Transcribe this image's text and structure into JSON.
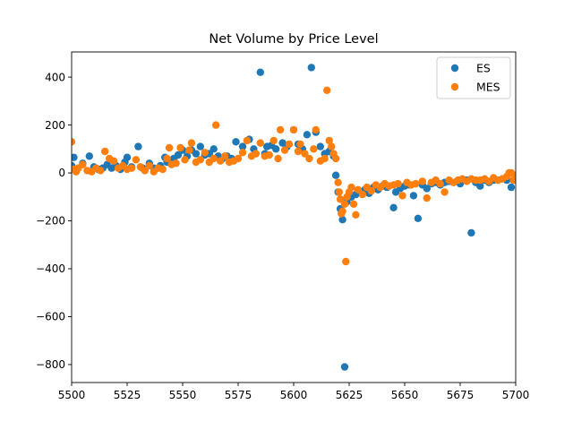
{
  "chart_data": {
    "type": "scatter",
    "title": "Net Volume by Price Level",
    "xlabel": "",
    "ylabel": "",
    "xlim": [
      5500,
      5700
    ],
    "ylim": [
      -875,
      505
    ],
    "xticks": [
      5500,
      5525,
      5550,
      5575,
      5600,
      5625,
      5650,
      5675,
      5700
    ],
    "yticks": [
      -800,
      -600,
      -400,
      -200,
      0,
      200,
      400
    ],
    "yticks_labels": [
      "−800",
      "−600",
      "−400",
      "−200",
      "0",
      "200",
      "400"
    ],
    "grid": false,
    "legend_position": "top-right",
    "series": [
      {
        "name": "ES",
        "color": "#1f77b4",
        "points": [
          [
            5500,
            30
          ],
          [
            5501,
            65
          ],
          [
            5503,
            20
          ],
          [
            5505,
            40
          ],
          [
            5508,
            70
          ],
          [
            5510,
            25
          ],
          [
            5512,
            15
          ],
          [
            5514,
            20
          ],
          [
            5516,
            35
          ],
          [
            5518,
            20
          ],
          [
            5520,
            30
          ],
          [
            5522,
            15
          ],
          [
            5524,
            45
          ],
          [
            5525,
            65
          ],
          [
            5527,
            25
          ],
          [
            5530,
            110
          ],
          [
            5532,
            20
          ],
          [
            5535,
            40
          ],
          [
            5537,
            20
          ],
          [
            5540,
            30
          ],
          [
            5542,
            65
          ],
          [
            5543,
            45
          ],
          [
            5546,
            60
          ],
          [
            5548,
            75
          ],
          [
            5550,
            95
          ],
          [
            5552,
            70
          ],
          [
            5554,
            95
          ],
          [
            5556,
            80
          ],
          [
            5558,
            110
          ],
          [
            5560,
            75
          ],
          [
            5562,
            80
          ],
          [
            5564,
            100
          ],
          [
            5566,
            70
          ],
          [
            5568,
            60
          ],
          [
            5570,
            70
          ],
          [
            5572,
            60
          ],
          [
            5574,
            130
          ],
          [
            5577,
            110
          ],
          [
            5580,
            140
          ],
          [
            5582,
            100
          ],
          [
            5585,
            420
          ],
          [
            5587,
            80
          ],
          [
            5588,
            110
          ],
          [
            5590,
            115
          ],
          [
            5592,
            100
          ],
          [
            5595,
            125
          ],
          [
            5597,
            110
          ],
          [
            5600,
            180
          ],
          [
            5602,
            120
          ],
          [
            5604,
            100
          ],
          [
            5606,
            160
          ],
          [
            5608,
            440
          ],
          [
            5610,
            170
          ],
          [
            5612,
            110
          ],
          [
            5614,
            80
          ],
          [
            5616,
            90
          ],
          [
            5618,
            70
          ],
          [
            5619,
            -10
          ],
          [
            5620,
            -80
          ],
          [
            5621,
            -150
          ],
          [
            5622,
            -195
          ],
          [
            5623,
            -810
          ],
          [
            5624,
            -120
          ],
          [
            5626,
            -100
          ],
          [
            5628,
            -90
          ],
          [
            5630,
            -80
          ],
          [
            5632,
            -70
          ],
          [
            5634,
            -85
          ],
          [
            5636,
            -60
          ],
          [
            5638,
            -70
          ],
          [
            5640,
            -55
          ],
          [
            5642,
            -60
          ],
          [
            5645,
            -145
          ],
          [
            5646,
            -80
          ],
          [
            5648,
            -65
          ],
          [
            5650,
            -55
          ],
          [
            5652,
            -50
          ],
          [
            5654,
            -95
          ],
          [
            5656,
            -190
          ],
          [
            5658,
            -50
          ],
          [
            5660,
            -65
          ],
          [
            5662,
            -45
          ],
          [
            5664,
            -40
          ],
          [
            5666,
            -50
          ],
          [
            5668,
            -40
          ],
          [
            5670,
            -35
          ],
          [
            5672,
            -40
          ],
          [
            5675,
            -45
          ],
          [
            5678,
            -30
          ],
          [
            5680,
            -250
          ],
          [
            5682,
            -40
          ],
          [
            5684,
            -55
          ],
          [
            5686,
            -30
          ],
          [
            5688,
            -40
          ],
          [
            5690,
            -30
          ],
          [
            5692,
            -30
          ],
          [
            5694,
            -25
          ],
          [
            5696,
            -30
          ],
          [
            5698,
            -60
          ],
          [
            5699,
            -30
          ],
          [
            5700,
            -20
          ]
        ]
      },
      {
        "name": "MES",
        "color": "#ff7f0e",
        "points": [
          [
            5500,
            130
          ],
          [
            5501,
            15
          ],
          [
            5502,
            5
          ],
          [
            5503,
            20
          ],
          [
            5505,
            35
          ],
          [
            5507,
            10
          ],
          [
            5509,
            5
          ],
          [
            5511,
            20
          ],
          [
            5513,
            10
          ],
          [
            5515,
            90
          ],
          [
            5517,
            60
          ],
          [
            5519,
            50
          ],
          [
            5521,
            20
          ],
          [
            5523,
            30
          ],
          [
            5525,
            15
          ],
          [
            5527,
            20
          ],
          [
            5529,
            55
          ],
          [
            5531,
            25
          ],
          [
            5533,
            10
          ],
          [
            5535,
            30
          ],
          [
            5537,
            5
          ],
          [
            5539,
            20
          ],
          [
            5541,
            15
          ],
          [
            5543,
            60
          ],
          [
            5544,
            105
          ],
          [
            5545,
            35
          ],
          [
            5547,
            40
          ],
          [
            5549,
            105
          ],
          [
            5551,
            55
          ],
          [
            5553,
            95
          ],
          [
            5554,
            125
          ],
          [
            5556,
            45
          ],
          [
            5558,
            55
          ],
          [
            5560,
            85
          ],
          [
            5562,
            45
          ],
          [
            5564,
            60
          ],
          [
            5565,
            200
          ],
          [
            5567,
            50
          ],
          [
            5569,
            70
          ],
          [
            5571,
            45
          ],
          [
            5573,
            50
          ],
          [
            5575,
            60
          ],
          [
            5577,
            85
          ],
          [
            5579,
            135
          ],
          [
            5581,
            70
          ],
          [
            5583,
            80
          ],
          [
            5585,
            125
          ],
          [
            5587,
            70
          ],
          [
            5589,
            75
          ],
          [
            5591,
            135
          ],
          [
            5593,
            60
          ],
          [
            5594,
            180
          ],
          [
            5596,
            95
          ],
          [
            5598,
            120
          ],
          [
            5600,
            180
          ],
          [
            5602,
            90
          ],
          [
            5603,
            120
          ],
          [
            5605,
            80
          ],
          [
            5607,
            60
          ],
          [
            5609,
            100
          ],
          [
            5610,
            180
          ],
          [
            5612,
            50
          ],
          [
            5614,
            60
          ],
          [
            5615,
            345
          ],
          [
            5616,
            135
          ],
          [
            5617,
            110
          ],
          [
            5618,
            80
          ],
          [
            5619,
            60
          ],
          [
            5620,
            -40
          ],
          [
            5620.5,
            -80
          ],
          [
            5621,
            -110
          ],
          [
            5621.5,
            -170
          ],
          [
            5622,
            -160
          ],
          [
            5623,
            -130
          ],
          [
            5623.5,
            -370
          ],
          [
            5624,
            -100
          ],
          [
            5625,
            -80
          ],
          [
            5626,
            -60
          ],
          [
            5627,
            -130
          ],
          [
            5628,
            -175
          ],
          [
            5629,
            -70
          ],
          [
            5631,
            -90
          ],
          [
            5633,
            -60
          ],
          [
            5635,
            -75
          ],
          [
            5637,
            -50
          ],
          [
            5639,
            -60
          ],
          [
            5641,
            -45
          ],
          [
            5643,
            -55
          ],
          [
            5645,
            -50
          ],
          [
            5647,
            -45
          ],
          [
            5649,
            -95
          ],
          [
            5651,
            -40
          ],
          [
            5653,
            -50
          ],
          [
            5655,
            -45
          ],
          [
            5658,
            -35
          ],
          [
            5660,
            -105
          ],
          [
            5662,
            -40
          ],
          [
            5664,
            -30
          ],
          [
            5666,
            -45
          ],
          [
            5668,
            -80
          ],
          [
            5670,
            -30
          ],
          [
            5672,
            -40
          ],
          [
            5674,
            -30
          ],
          [
            5676,
            -25
          ],
          [
            5678,
            -35
          ],
          [
            5680,
            -25
          ],
          [
            5682,
            -30
          ],
          [
            5684,
            -30
          ],
          [
            5686,
            -25
          ],
          [
            5688,
            -35
          ],
          [
            5690,
            -20
          ],
          [
            5692,
            -30
          ],
          [
            5694,
            -25
          ],
          [
            5696,
            -15
          ],
          [
            5697,
            0
          ],
          [
            5698,
            0
          ],
          [
            5699,
            -30
          ],
          [
            5700,
            -10
          ]
        ]
      }
    ]
  }
}
